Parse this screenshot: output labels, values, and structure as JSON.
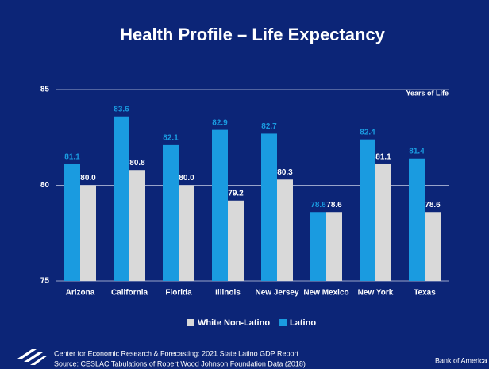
{
  "chart_data": {
    "type": "bar",
    "title": "Health Profile – Life Expectancy",
    "y_axis_label": "Years of Life",
    "categories": [
      "Arizona",
      "California",
      "Florida",
      "Illinois",
      "New Jersey",
      "New Mexico",
      "New York",
      "Texas"
    ],
    "series": [
      {
        "name": "White Non-Latino",
        "color": "#d9d9d9",
        "values": [
          80.0,
          80.8,
          80.0,
          79.2,
          80.3,
          78.6,
          81.1,
          78.6
        ],
        "value_labels": [
          "80.0",
          "80.8",
          "80.0",
          "79.2",
          "80.3",
          "78.6",
          "81.1",
          "78.6"
        ]
      },
      {
        "name": "Latino",
        "color": "#1a9be0",
        "values": [
          81.1,
          83.6,
          82.1,
          82.9,
          82.7,
          78.6,
          82.4,
          81.4
        ],
        "value_labels": [
          "81.1",
          "83.6",
          "82.1",
          "82.9",
          "82.7",
          "78.6",
          "82.4",
          "81.4"
        ]
      }
    ],
    "ylim": [
      75,
      85
    ],
    "yticks": [
      75,
      80,
      85
    ],
    "grid": true,
    "legend": "bottom",
    "footnotes": [
      "Center for Economic Research & Forecasting: 2021 State Latino GDP Report",
      "Source: CESLAC Tabulations of Robert Wood Johnson Foundation Data (2018)"
    ],
    "brand": "Bank of America"
  }
}
